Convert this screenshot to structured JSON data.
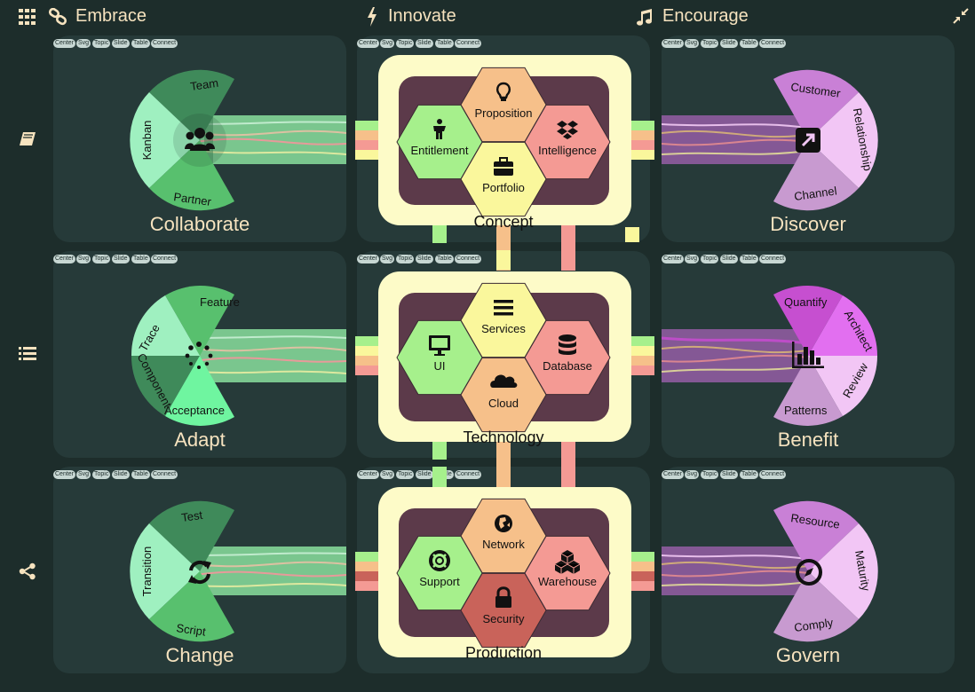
{
  "header": {
    "columns": [
      {
        "title": "Embrace",
        "icon": "link-icon"
      },
      {
        "title": "Innovate",
        "icon": "lightning-icon"
      },
      {
        "title": "Encourage",
        "icon": "music-icon"
      }
    ]
  },
  "sidebar": {
    "items": [
      {
        "icon": "grid-icon"
      },
      {
        "icon": "book-icon"
      },
      {
        "icon": "list-icon"
      },
      {
        "icon": "share-icon"
      }
    ]
  },
  "toolbar_labels": [
    "Center",
    "Svg",
    "Topic",
    "Slide",
    "Table",
    "Connect"
  ],
  "rows": [
    {
      "left": {
        "title": "Collaborate",
        "icon": "group-icon",
        "segments": [
          "Team",
          "Kanban",
          "Partner"
        ]
      },
      "center": {
        "title": "Concept",
        "hexes": [
          {
            "label": "Proposition",
            "icon": "lightbulb-icon",
            "color": "#f6c08a"
          },
          {
            "label": "Entitlement",
            "icon": "person-icon",
            "color": "#a6f08c"
          },
          {
            "label": "Intelligence",
            "icon": "dropbox-icon",
            "color": "#f49a94"
          },
          {
            "label": "Portfolio",
            "icon": "briefcase-icon",
            "color": "#faf79c"
          }
        ]
      },
      "right": {
        "title": "Discover",
        "icon": "external-link-icon",
        "segments": [
          "Customer",
          "Relationship",
          "Channel"
        ]
      }
    },
    {
      "left": {
        "title": "Adapt",
        "icon": "spinner-icon",
        "segments": [
          "Feature",
          "Trace",
          "Component",
          "Acceptance"
        ]
      },
      "center": {
        "title": "Technology",
        "hexes": [
          {
            "label": "Services",
            "icon": "menu-icon",
            "color": "#faf79c"
          },
          {
            "label": "UI",
            "icon": "monitor-icon",
            "color": "#a6f08c"
          },
          {
            "label": "Database",
            "icon": "database-icon",
            "color": "#f49a94"
          },
          {
            "label": "Cloud",
            "icon": "cloud-icon",
            "color": "#f6c08a"
          }
        ]
      },
      "right": {
        "title": "Benefit",
        "icon": "bar-chart-icon",
        "segments": [
          "Quantify",
          "Architect",
          "Review",
          "Patterns"
        ]
      }
    },
    {
      "left": {
        "title": "Change",
        "icon": "refresh-icon",
        "segments": [
          "Test",
          "Transition",
          "Script"
        ]
      },
      "center": {
        "title": "Production",
        "hexes": [
          {
            "label": "Network",
            "icon": "globe-icon",
            "color": "#f6c08a"
          },
          {
            "label": "Support",
            "icon": "lifebuoy-icon",
            "color": "#a6f08c"
          },
          {
            "label": "Warehouse",
            "icon": "cubes-icon",
            "color": "#f49a94"
          },
          {
            "label": "Security",
            "icon": "lock-icon",
            "color": "#c9635a"
          }
        ]
      },
      "right": {
        "title": "Govern",
        "icon": "compass-icon",
        "segments": [
          "Resource",
          "Maturity",
          "Comply"
        ]
      }
    }
  ],
  "colors": {
    "background": "#1d2d2b",
    "tile": "#263a39",
    "header_text": "#f6e3bf",
    "center_frame": "#fdfbc8",
    "center_inner": "#5c3a4a",
    "green_dark": "#3f8a5a",
    "green_mid": "#58c06e",
    "green_light": "#9ff0c0",
    "purple_dark": "#a15fb2",
    "purple_mid": "#c980d6",
    "purple_light": "#f2c6f5"
  }
}
